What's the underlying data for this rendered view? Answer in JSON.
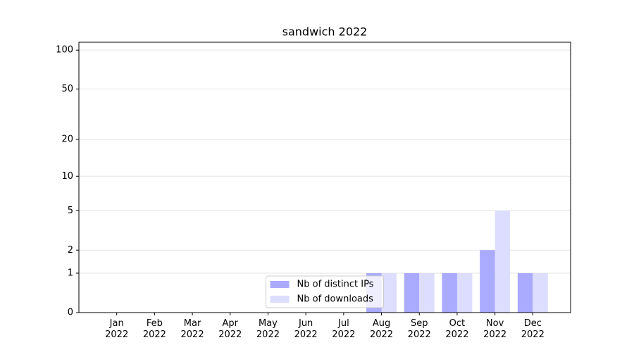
{
  "chart_data": {
    "type": "bar",
    "title": "sandwich 2022",
    "categories": [
      "Jan\n2022",
      "Feb\n2022",
      "Mar\n2022",
      "Apr\n2022",
      "May\n2022",
      "Jun\n2022",
      "Jul\n2022",
      "Aug\n2022",
      "Sep\n2022",
      "Oct\n2022",
      "Nov\n2022",
      "Dec\n2022"
    ],
    "series": [
      {
        "name": "Nb of distinct IPs",
        "color": "#aaaaff",
        "values": [
          0,
          0,
          0,
          0,
          0,
          0,
          0,
          1,
          1,
          1,
          2,
          1
        ]
      },
      {
        "name": "Nb of downloads",
        "color": "#ddddff",
        "values": [
          0,
          0,
          0,
          0,
          0,
          0,
          0,
          1,
          1,
          1,
          5,
          1
        ]
      }
    ],
    "yscale": "log1p",
    "ylim": [
      0,
      115
    ],
    "yticks": [
      0,
      1,
      2,
      5,
      10,
      20,
      50,
      100
    ],
    "grid": true,
    "legend": "lower center"
  }
}
